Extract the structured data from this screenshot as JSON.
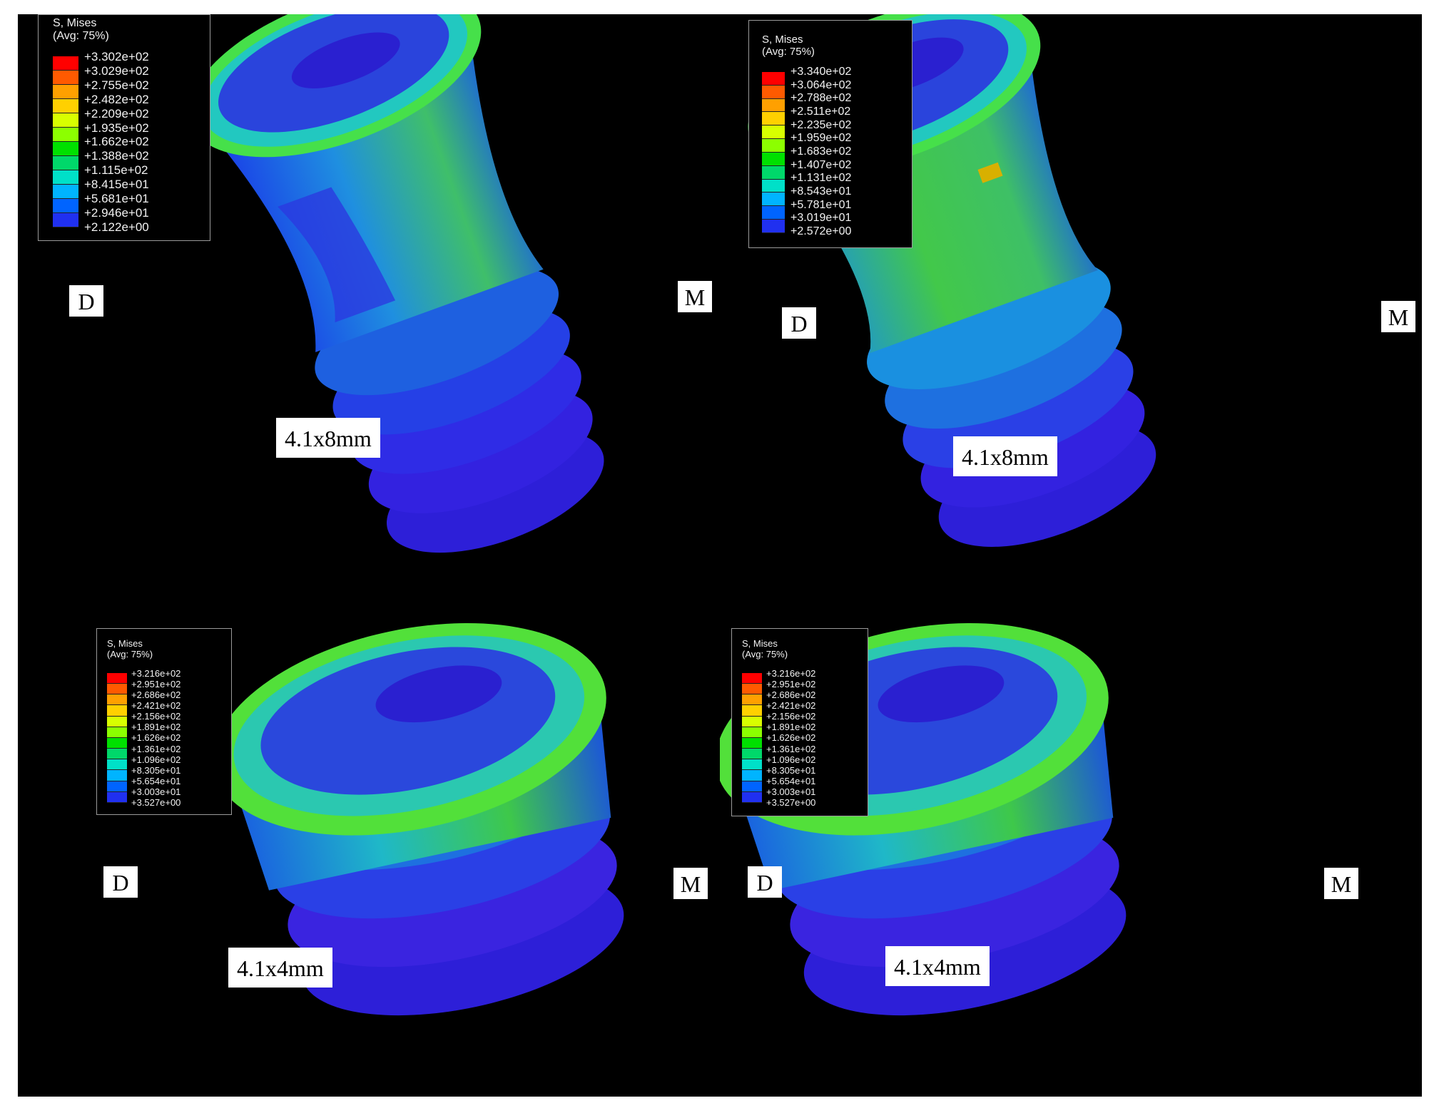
{
  "panels": [
    {
      "legend": {
        "title_line1": "S, Mises",
        "title_line2": "(Avg: 75%)",
        "values": [
          "+3.302e+02",
          "+3.029e+02",
          "+2.755e+02",
          "+2.482e+02",
          "+2.209e+02",
          "+1.935e+02",
          "+1.662e+02",
          "+1.388e+02",
          "+1.115e+02",
          "+8.415e+01",
          "+5.681e+01",
          "+2.946e+01",
          "+2.122e+00"
        ]
      },
      "left_label": "D",
      "right_label": "M",
      "size_label": "4.1x8mm"
    },
    {
      "legend": {
        "title_line1": "S, Mises",
        "title_line2": "(Avg: 75%)",
        "values": [
          "+3.340e+02",
          "+3.064e+02",
          "+2.788e+02",
          "+2.511e+02",
          "+2.235e+02",
          "+1.959e+02",
          "+1.683e+02",
          "+1.407e+02",
          "+1.131e+02",
          "+8.543e+01",
          "+5.781e+01",
          "+3.019e+01",
          "+2.572e+00"
        ]
      },
      "left_label": "D",
      "right_label": "M",
      "size_label": "4.1x8mm"
    },
    {
      "legend": {
        "title_line1": "S, Mises",
        "title_line2": "(Avg: 75%)",
        "values": [
          "+3.216e+02",
          "+2.951e+02",
          "+2.686e+02",
          "+2.421e+02",
          "+2.156e+02",
          "+1.891e+02",
          "+1.626e+02",
          "+1.361e+02",
          "+1.096e+02",
          "+8.305e+01",
          "+5.654e+01",
          "+3.003e+01",
          "+3.527e+00"
        ]
      },
      "left_label": "D",
      "right_label": "M",
      "size_label": "4.1x4mm"
    },
    {
      "legend": {
        "title_line1": "S, Mises",
        "title_line2": "(Avg: 75%)",
        "values": [
          "+3.216e+02",
          "+2.951e+02",
          "+2.686e+02",
          "+2.421e+02",
          "+2.156e+02",
          "+1.891e+02",
          "+1.626e+02",
          "+1.361e+02",
          "+1.096e+02",
          "+8.305e+01",
          "+5.654e+01",
          "+3.003e+01",
          "+3.527e+00"
        ]
      },
      "left_label": "D",
      "right_label": "M",
      "size_label": "4.1x4mm"
    }
  ],
  "colors": {
    "background": "#000000",
    "contour_bands": [
      "#ff0000",
      "#ff5a00",
      "#ffa000",
      "#ffd000",
      "#d8ff00",
      "#8cff00",
      "#00e000",
      "#00d86a",
      "#00e0c8",
      "#00b4ff",
      "#0064ff",
      "#2030f0",
      "#3a00e6"
    ],
    "label_background": "#ffffff"
  }
}
